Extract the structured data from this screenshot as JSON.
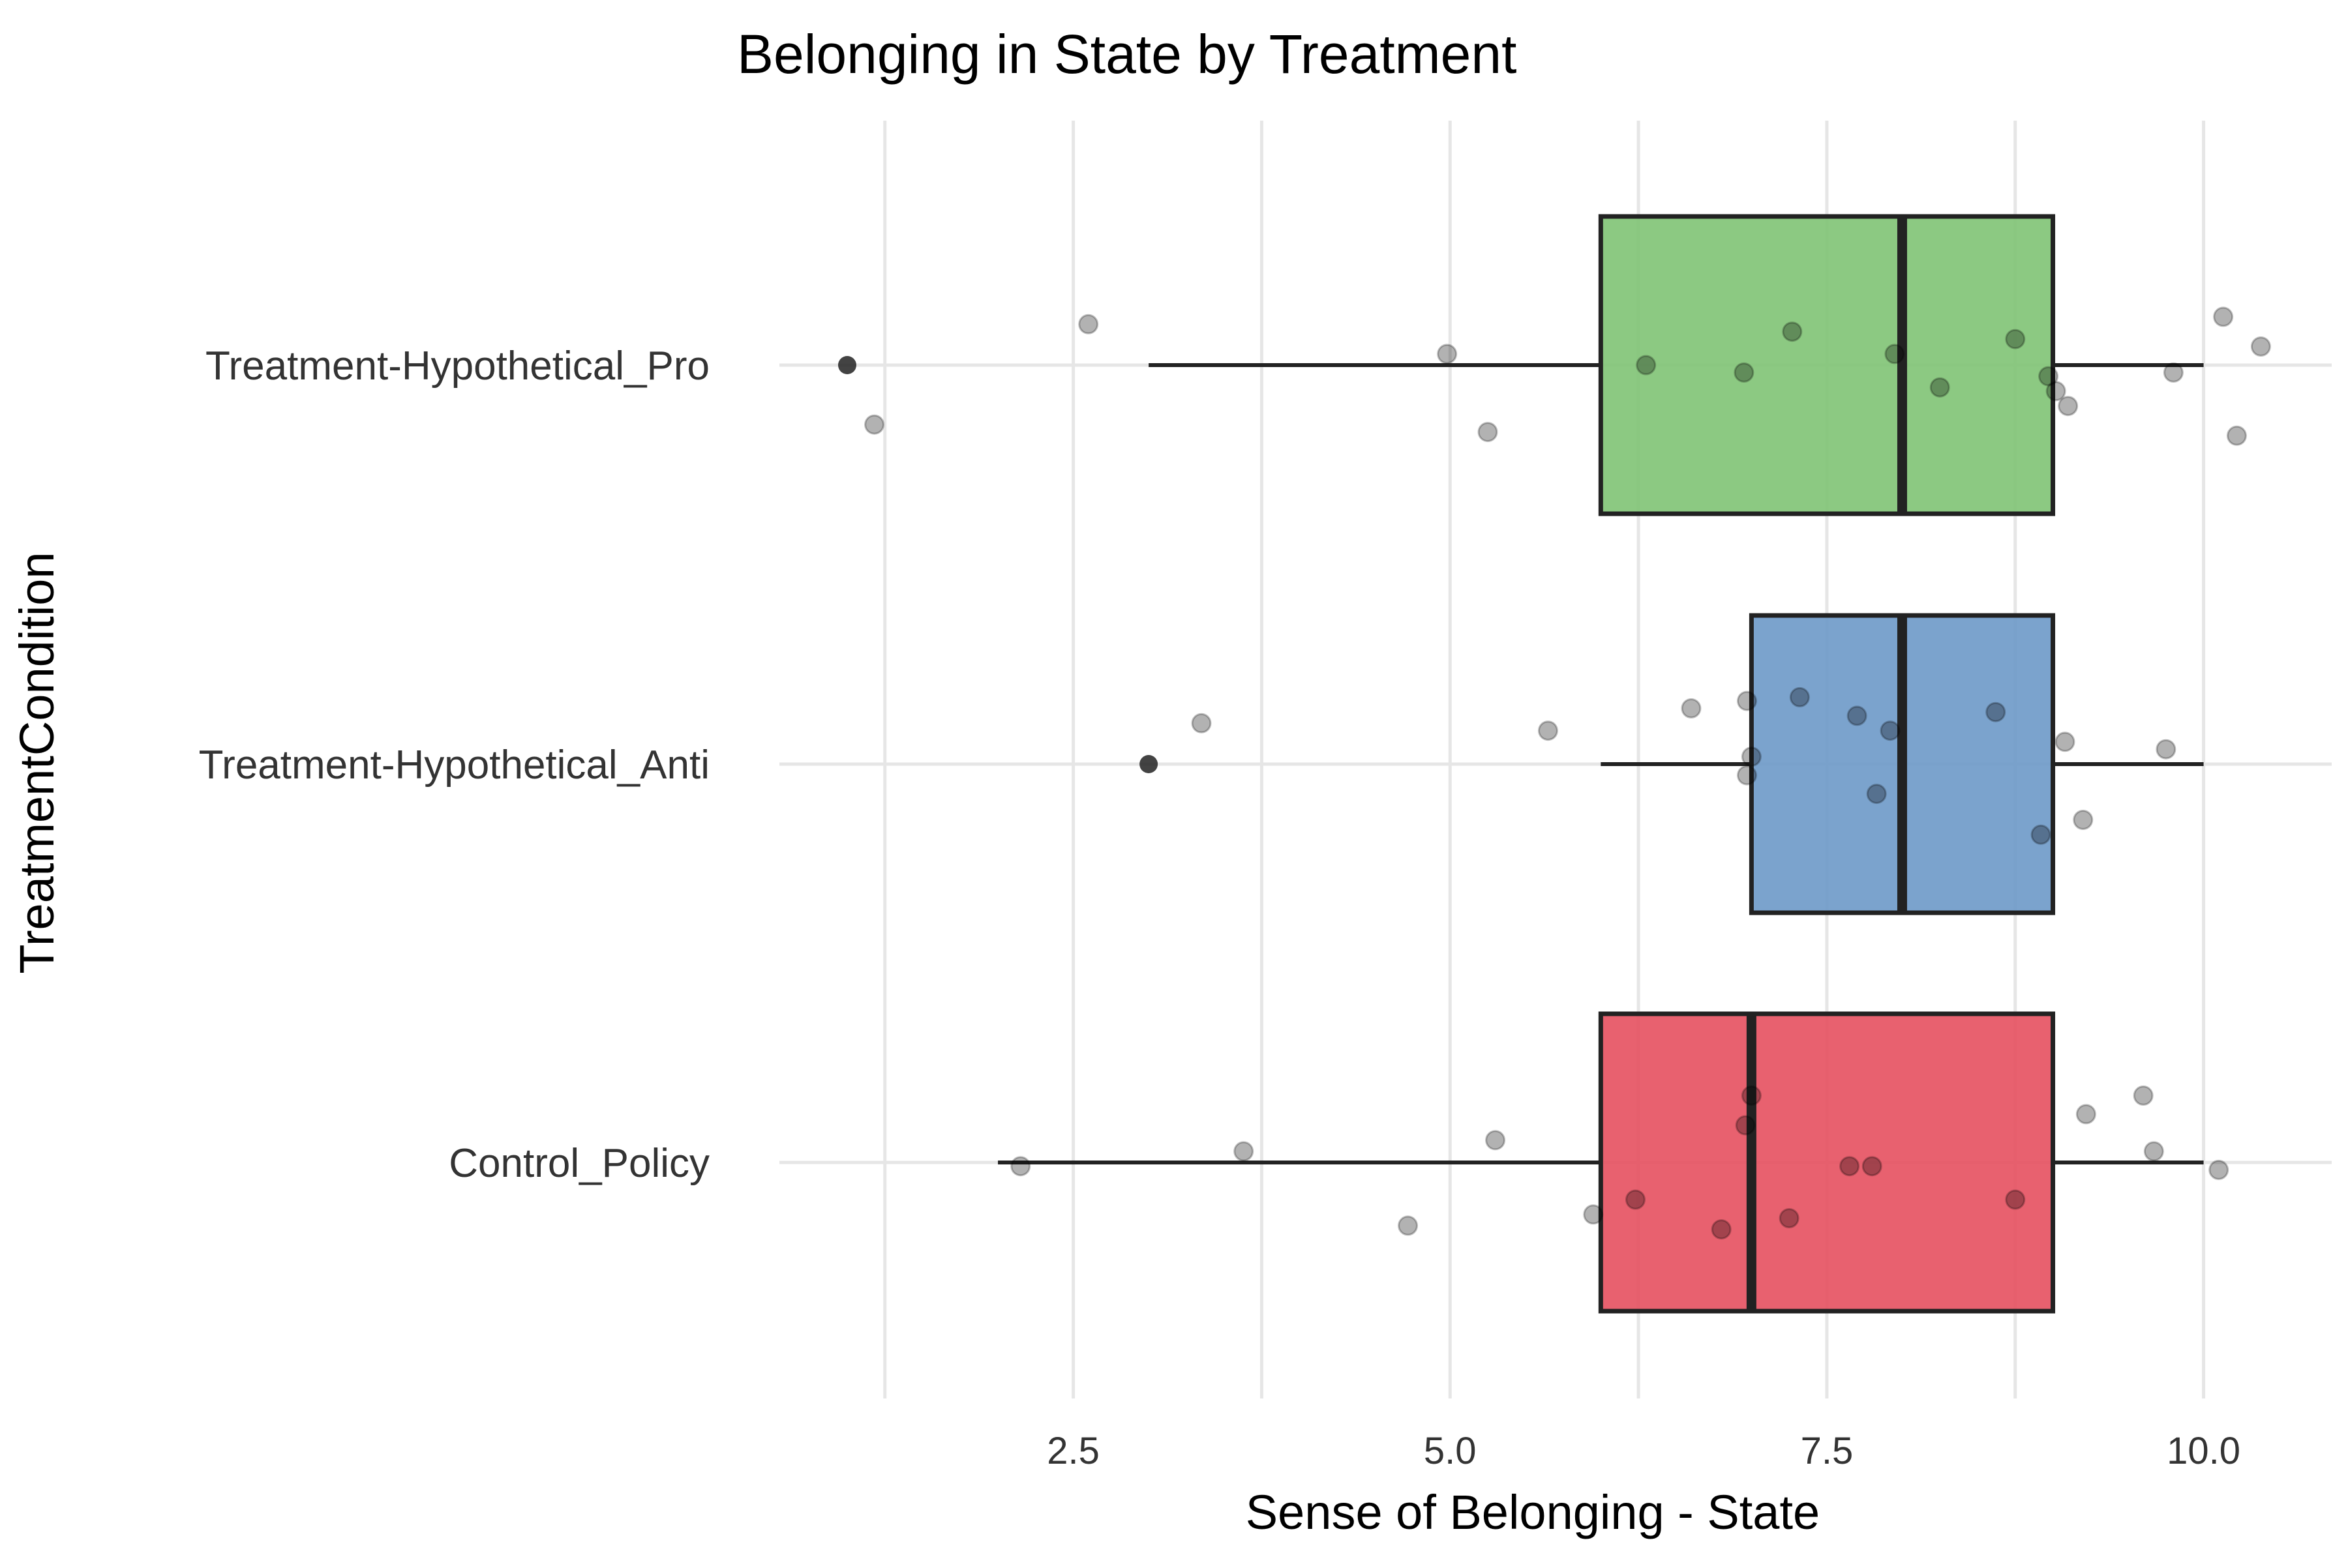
{
  "chart_data": {
    "type": "boxplot",
    "orientation": "horizontal",
    "title": "Belonging in State by Treatment",
    "xlabel": "Sense of Belonging - State",
    "ylabel": "TreatmentCondition",
    "xlim": [
      0.55,
      10.85
    ],
    "x_ticks": [
      2.5,
      5.0,
      7.5,
      10.0
    ],
    "x_tick_labels": [
      "2.5",
      "5.0",
      "7.5",
      "10.0"
    ],
    "x_minor_gridlines": [
      1.25,
      3.75,
      6.25,
      8.75
    ],
    "grid": true,
    "legend": "none",
    "categories": [
      "Treatment-Hypothetical_Pro",
      "Treatment-Hypothetical_Anti",
      "Control_Policy"
    ],
    "boxes": [
      {
        "category": "Treatment-Hypothetical_Pro",
        "color": "#7fc374",
        "whisker_low": 3,
        "q1": 6,
        "median": 8,
        "q3": 9,
        "whisker_high": 10,
        "outliers": [
          1
        ]
      },
      {
        "category": "Treatment-Hypothetical_Anti",
        "color": "#6d99c8",
        "whisker_low": 6,
        "q1": 7,
        "median": 8,
        "q3": 9,
        "whisker_high": 10,
        "outliers": [
          3
        ]
      },
      {
        "category": "Control_Policy",
        "color": "#e5505f",
        "whisker_low": 2,
        "q1": 6,
        "median": 7,
        "q3": 9,
        "whisker_high": 10,
        "outliers": []
      }
    ],
    "points": [
      {
        "category": "Treatment-Hypothetical_Pro",
        "x": 2.6,
        "jitter": 0.11
      },
      {
        "category": "Treatment-Hypothetical_Pro",
        "x": 4.98,
        "jitter": 0.03
      },
      {
        "category": "Treatment-Hypothetical_Pro",
        "x": 5.25,
        "jitter": -0.18
      },
      {
        "category": "Treatment-Hypothetical_Pro",
        "x": 1.18,
        "jitter": -0.16
      },
      {
        "category": "Treatment-Hypothetical_Pro",
        "x": 6.3,
        "jitter": 0.0
      },
      {
        "category": "Treatment-Hypothetical_Pro",
        "x": 6.95,
        "jitter": -0.02
      },
      {
        "category": "Treatment-Hypothetical_Pro",
        "x": 7.27,
        "jitter": 0.09
      },
      {
        "category": "Treatment-Hypothetical_Pro",
        "x": 7.95,
        "jitter": 0.03
      },
      {
        "category": "Treatment-Hypothetical_Pro",
        "x": 8.25,
        "jitter": -0.06
      },
      {
        "category": "Treatment-Hypothetical_Pro",
        "x": 8.75,
        "jitter": 0.07
      },
      {
        "category": "Treatment-Hypothetical_Pro",
        "x": 8.97,
        "jitter": -0.03
      },
      {
        "category": "Treatment-Hypothetical_Pro",
        "x": 9.02,
        "jitter": -0.07
      },
      {
        "category": "Treatment-Hypothetical_Pro",
        "x": 9.1,
        "jitter": -0.11
      },
      {
        "category": "Treatment-Hypothetical_Pro",
        "x": 9.8,
        "jitter": -0.02
      },
      {
        "category": "Treatment-Hypothetical_Pro",
        "x": 10.13,
        "jitter": 0.13
      },
      {
        "category": "Treatment-Hypothetical_Pro",
        "x": 10.38,
        "jitter": 0.05
      },
      {
        "category": "Treatment-Hypothetical_Pro",
        "x": 10.22,
        "jitter": -0.19
      },
      {
        "category": "Treatment-Hypothetical_Anti",
        "x": 3.35,
        "jitter": 0.11
      },
      {
        "category": "Treatment-Hypothetical_Anti",
        "x": 5.65,
        "jitter": 0.09
      },
      {
        "category": "Treatment-Hypothetical_Anti",
        "x": 6.6,
        "jitter": 0.15
      },
      {
        "category": "Treatment-Hypothetical_Anti",
        "x": 6.97,
        "jitter": 0.17
      },
      {
        "category": "Treatment-Hypothetical_Anti",
        "x": 7.0,
        "jitter": 0.02
      },
      {
        "category": "Treatment-Hypothetical_Anti",
        "x": 6.97,
        "jitter": -0.03
      },
      {
        "category": "Treatment-Hypothetical_Anti",
        "x": 7.32,
        "jitter": 0.18
      },
      {
        "category": "Treatment-Hypothetical_Anti",
        "x": 7.7,
        "jitter": 0.13
      },
      {
        "category": "Treatment-Hypothetical_Anti",
        "x": 7.92,
        "jitter": 0.09
      },
      {
        "category": "Treatment-Hypothetical_Anti",
        "x": 7.83,
        "jitter": -0.08
      },
      {
        "category": "Treatment-Hypothetical_Anti",
        "x": 8.62,
        "jitter": 0.14
      },
      {
        "category": "Treatment-Hypothetical_Anti",
        "x": 8.92,
        "jitter": -0.19
      },
      {
        "category": "Treatment-Hypothetical_Anti",
        "x": 9.08,
        "jitter": 0.06
      },
      {
        "category": "Treatment-Hypothetical_Anti",
        "x": 9.2,
        "jitter": -0.15
      },
      {
        "category": "Treatment-Hypothetical_Anti",
        "x": 9.75,
        "jitter": 0.04
      },
      {
        "category": "Control_Policy",
        "x": 2.15,
        "jitter": -0.01
      },
      {
        "category": "Control_Policy",
        "x": 3.63,
        "jitter": 0.03
      },
      {
        "category": "Control_Policy",
        "x": 4.72,
        "jitter": -0.17
      },
      {
        "category": "Control_Policy",
        "x": 5.3,
        "jitter": 0.06
      },
      {
        "category": "Control_Policy",
        "x": 5.95,
        "jitter": -0.14
      },
      {
        "category": "Control_Policy",
        "x": 6.23,
        "jitter": -0.1
      },
      {
        "category": "Control_Policy",
        "x": 6.8,
        "jitter": -0.18
      },
      {
        "category": "Control_Policy",
        "x": 7.0,
        "jitter": 0.18
      },
      {
        "category": "Control_Policy",
        "x": 6.96,
        "jitter": 0.1
      },
      {
        "category": "Control_Policy",
        "x": 7.25,
        "jitter": -0.15
      },
      {
        "category": "Control_Policy",
        "x": 7.65,
        "jitter": -0.01
      },
      {
        "category": "Control_Policy",
        "x": 7.8,
        "jitter": -0.01
      },
      {
        "category": "Control_Policy",
        "x": 8.75,
        "jitter": -0.1
      },
      {
        "category": "Control_Policy",
        "x": 9.22,
        "jitter": 0.13
      },
      {
        "category": "Control_Policy",
        "x": 9.6,
        "jitter": 0.18
      },
      {
        "category": "Control_Policy",
        "x": 9.67,
        "jitter": 0.03
      },
      {
        "category": "Control_Policy",
        "x": 10.1,
        "jitter": -0.02
      }
    ]
  }
}
